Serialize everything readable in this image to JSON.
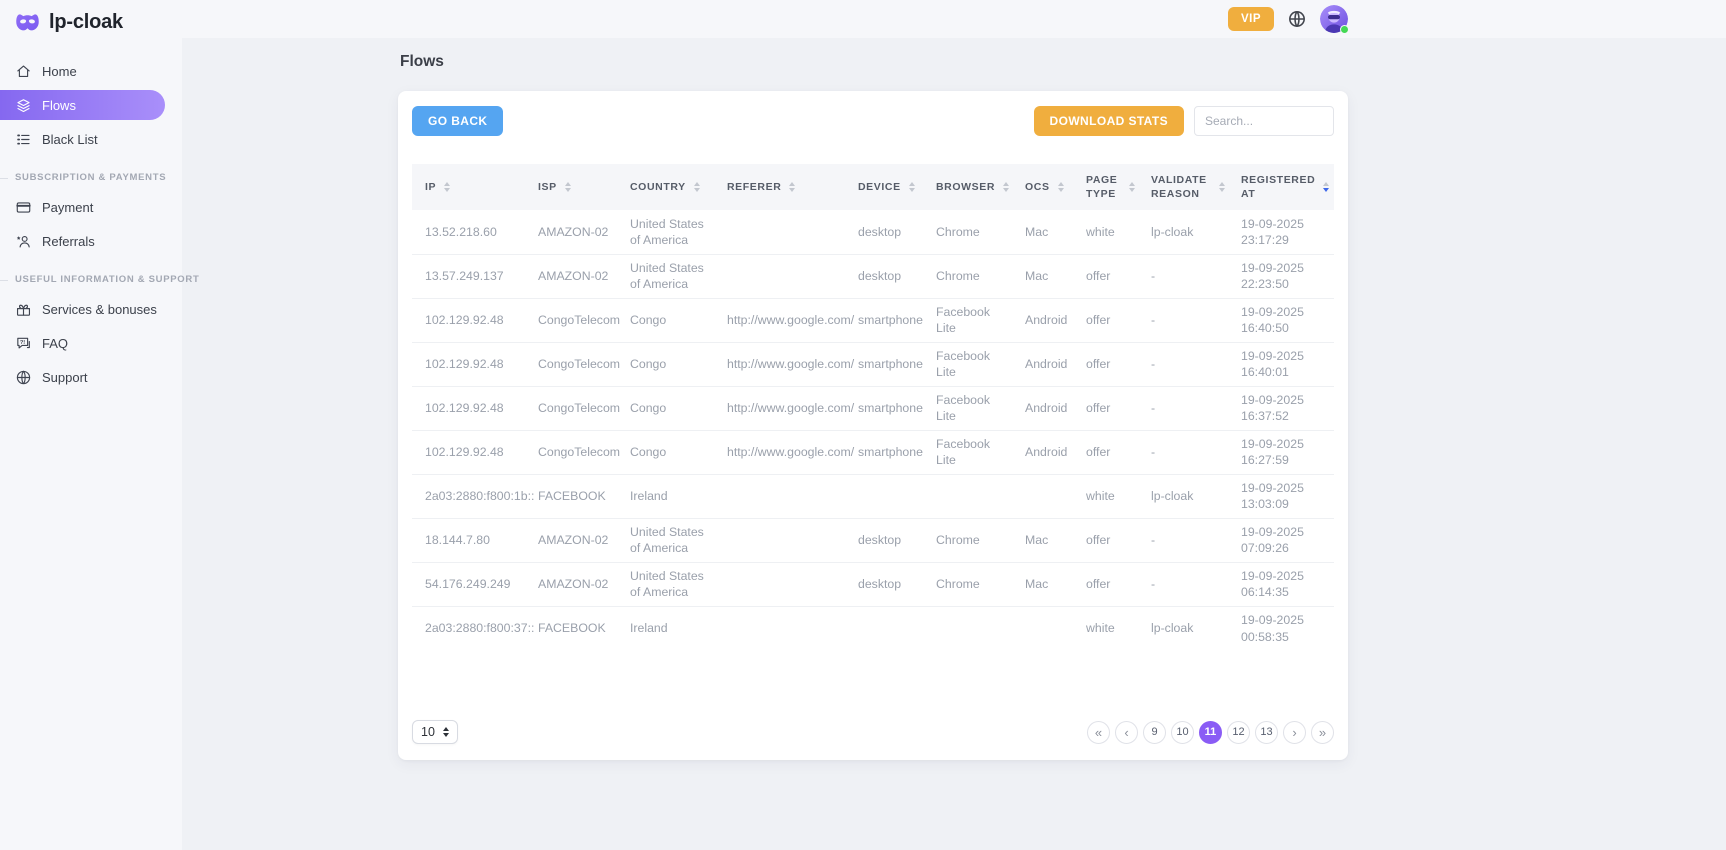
{
  "brand": {
    "name": "lp-cloak"
  },
  "header": {
    "vip_label": "VIP"
  },
  "sidebar": {
    "sections": [
      {
        "label": "",
        "items": [
          {
            "label": "Home",
            "icon": "home-icon",
            "active": false
          },
          {
            "label": "Flows",
            "icon": "flows-icon",
            "active": true
          },
          {
            "label": "Black List",
            "icon": "blacklist-icon",
            "active": false
          }
        ]
      },
      {
        "label": "SUBSCRIPTION & PAYMENTS",
        "items": [
          {
            "label": "Payment",
            "icon": "payment-icon",
            "active": false
          },
          {
            "label": "Referrals",
            "icon": "referrals-icon",
            "active": false
          }
        ]
      },
      {
        "label": "USEFUL INFORMATION & SUPPORT",
        "items": [
          {
            "label": "Services & bonuses",
            "icon": "gift-icon",
            "active": false
          },
          {
            "label": "FAQ",
            "icon": "faq-icon",
            "active": false
          },
          {
            "label": "Support",
            "icon": "support-icon",
            "active": false
          }
        ]
      }
    ]
  },
  "page": {
    "title": "Flows"
  },
  "toolbar": {
    "go_back_label": "GO BACK",
    "download_stats_label": "DOWNLOAD STATS",
    "search_placeholder": "Search..."
  },
  "table": {
    "columns": [
      {
        "key": "ip",
        "label": "IP",
        "sortable": true
      },
      {
        "key": "isp",
        "label": "ISP",
        "sortable": true
      },
      {
        "key": "country",
        "label": "COUNTRY",
        "sortable": true
      },
      {
        "key": "referer",
        "label": "REFERER",
        "sortable": true
      },
      {
        "key": "device",
        "label": "DEVICE",
        "sortable": true
      },
      {
        "key": "browser",
        "label": "BROWSER",
        "sortable": true
      },
      {
        "key": "ocs",
        "label": "OCS",
        "sortable": true
      },
      {
        "key": "page_type",
        "label": "PAGE TYPE",
        "sortable": true
      },
      {
        "key": "validate_reason",
        "label": "VALIDATE REASON",
        "sortable": true
      },
      {
        "key": "registered_at",
        "label": "REGISTERED AT",
        "sortable": true,
        "sorted": "desc"
      }
    ],
    "rows": [
      {
        "ip": "13.52.218.60",
        "isp": "AMAZON-02",
        "country": "United States of America",
        "referer": "",
        "device": "desktop",
        "browser": "Chrome",
        "ocs": "Mac",
        "page_type": "white",
        "validate_reason": "lp-cloak",
        "registered_at": "19-09-2025 23:17:29"
      },
      {
        "ip": "13.57.249.137",
        "isp": "AMAZON-02",
        "country": "United States of America",
        "referer": "",
        "device": "desktop",
        "browser": "Chrome",
        "ocs": "Mac",
        "page_type": "offer",
        "validate_reason": "-",
        "registered_at": "19-09-2025 22:23:50"
      },
      {
        "ip": "102.129.92.48",
        "isp": "CongoTelecom",
        "country": "Congo",
        "referer": "http://www.google.com/",
        "device": "smartphone",
        "browser": "Facebook Lite",
        "ocs": "Android",
        "page_type": "offer",
        "validate_reason": "-",
        "registered_at": "19-09-2025 16:40:50"
      },
      {
        "ip": "102.129.92.48",
        "isp": "CongoTelecom",
        "country": "Congo",
        "referer": "http://www.google.com/",
        "device": "smartphone",
        "browser": "Facebook Lite",
        "ocs": "Android",
        "page_type": "offer",
        "validate_reason": "-",
        "registered_at": "19-09-2025 16:40:01"
      },
      {
        "ip": "102.129.92.48",
        "isp": "CongoTelecom",
        "country": "Congo",
        "referer": "http://www.google.com/",
        "device": "smartphone",
        "browser": "Facebook Lite",
        "ocs": "Android",
        "page_type": "offer",
        "validate_reason": "-",
        "registered_at": "19-09-2025 16:37:52"
      },
      {
        "ip": "102.129.92.48",
        "isp": "CongoTelecom",
        "country": "Congo",
        "referer": "http://www.google.com/",
        "device": "smartphone",
        "browser": "Facebook Lite",
        "ocs": "Android",
        "page_type": "offer",
        "validate_reason": "-",
        "registered_at": "19-09-2025 16:27:59"
      },
      {
        "ip": "2a03:2880:f800:1b::",
        "isp": "FACEBOOK",
        "country": "Ireland",
        "referer": "",
        "device": "",
        "browser": "",
        "ocs": "",
        "page_type": "white",
        "validate_reason": "lp-cloak",
        "registered_at": "19-09-2025 13:03:09"
      },
      {
        "ip": "18.144.7.80",
        "isp": "AMAZON-02",
        "country": "United States of America",
        "referer": "",
        "device": "desktop",
        "browser": "Chrome",
        "ocs": "Mac",
        "page_type": "offer",
        "validate_reason": "-",
        "registered_at": "19-09-2025 07:09:26"
      },
      {
        "ip": "54.176.249.249",
        "isp": "AMAZON-02",
        "country": "United States of America",
        "referer": "",
        "device": "desktop",
        "browser": "Chrome",
        "ocs": "Mac",
        "page_type": "offer",
        "validate_reason": "-",
        "registered_at": "19-09-2025 06:14:35"
      },
      {
        "ip": "2a03:2880:f800:37::",
        "isp": "FACEBOOK",
        "country": "Ireland",
        "referer": "",
        "device": "",
        "browser": "",
        "ocs": "",
        "page_type": "white",
        "validate_reason": "lp-cloak",
        "registered_at": "19-09-2025 00:58:35"
      }
    ]
  },
  "footer": {
    "page_size": "10",
    "pagination": {
      "first_label": "«",
      "prev_label": "‹",
      "pages": [
        "9",
        "10",
        "11",
        "12",
        "13"
      ],
      "active_page": "11",
      "next_label": "›",
      "last_label": "»"
    }
  },
  "colors": {
    "accent": "#8a5cf5",
    "sidebar_active_from": "#8568f0",
    "sidebar_active_to": "#a98ffa",
    "blue": "#55a5f1",
    "amber": "#f0ae3e",
    "green": "#43d854",
    "sort_active": "#3e68ea"
  }
}
